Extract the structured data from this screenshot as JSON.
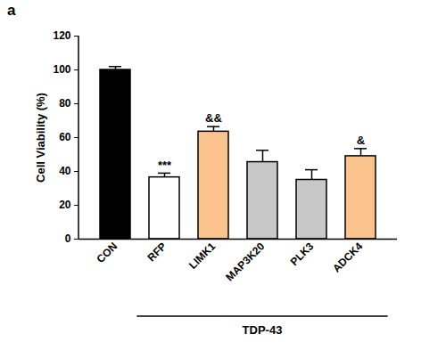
{
  "chart_data": {
    "type": "bar",
    "title": "a",
    "categories": [
      "CON",
      "RFP",
      "LIMK1",
      "MAP3K20",
      "PLK3",
      "ADCK4"
    ],
    "values": [
      100,
      36.5,
      63.5,
      45.5,
      35,
      49
    ],
    "errors": [
      2,
      2.5,
      3,
      7,
      6,
      4.5
    ],
    "colors": [
      "#000000",
      "#ffffff",
      "#fbc38e",
      "#c8c8c8",
      "#c8c8c8",
      "#fbc38e"
    ],
    "y_label": "Cell Viability (%)",
    "ylim": [
      0,
      120
    ],
    "yticks": [
      0,
      20,
      40,
      60,
      80,
      100,
      120
    ],
    "grid": false,
    "annotations": [
      {
        "category": "RFP",
        "text": "***"
      },
      {
        "category": "LIMK1",
        "text": "&&"
      },
      {
        "category": "ADCK4",
        "text": "&"
      }
    ],
    "group_label": {
      "text": "TDP-43",
      "from": "RFP",
      "to": "ADCK4"
    }
  }
}
